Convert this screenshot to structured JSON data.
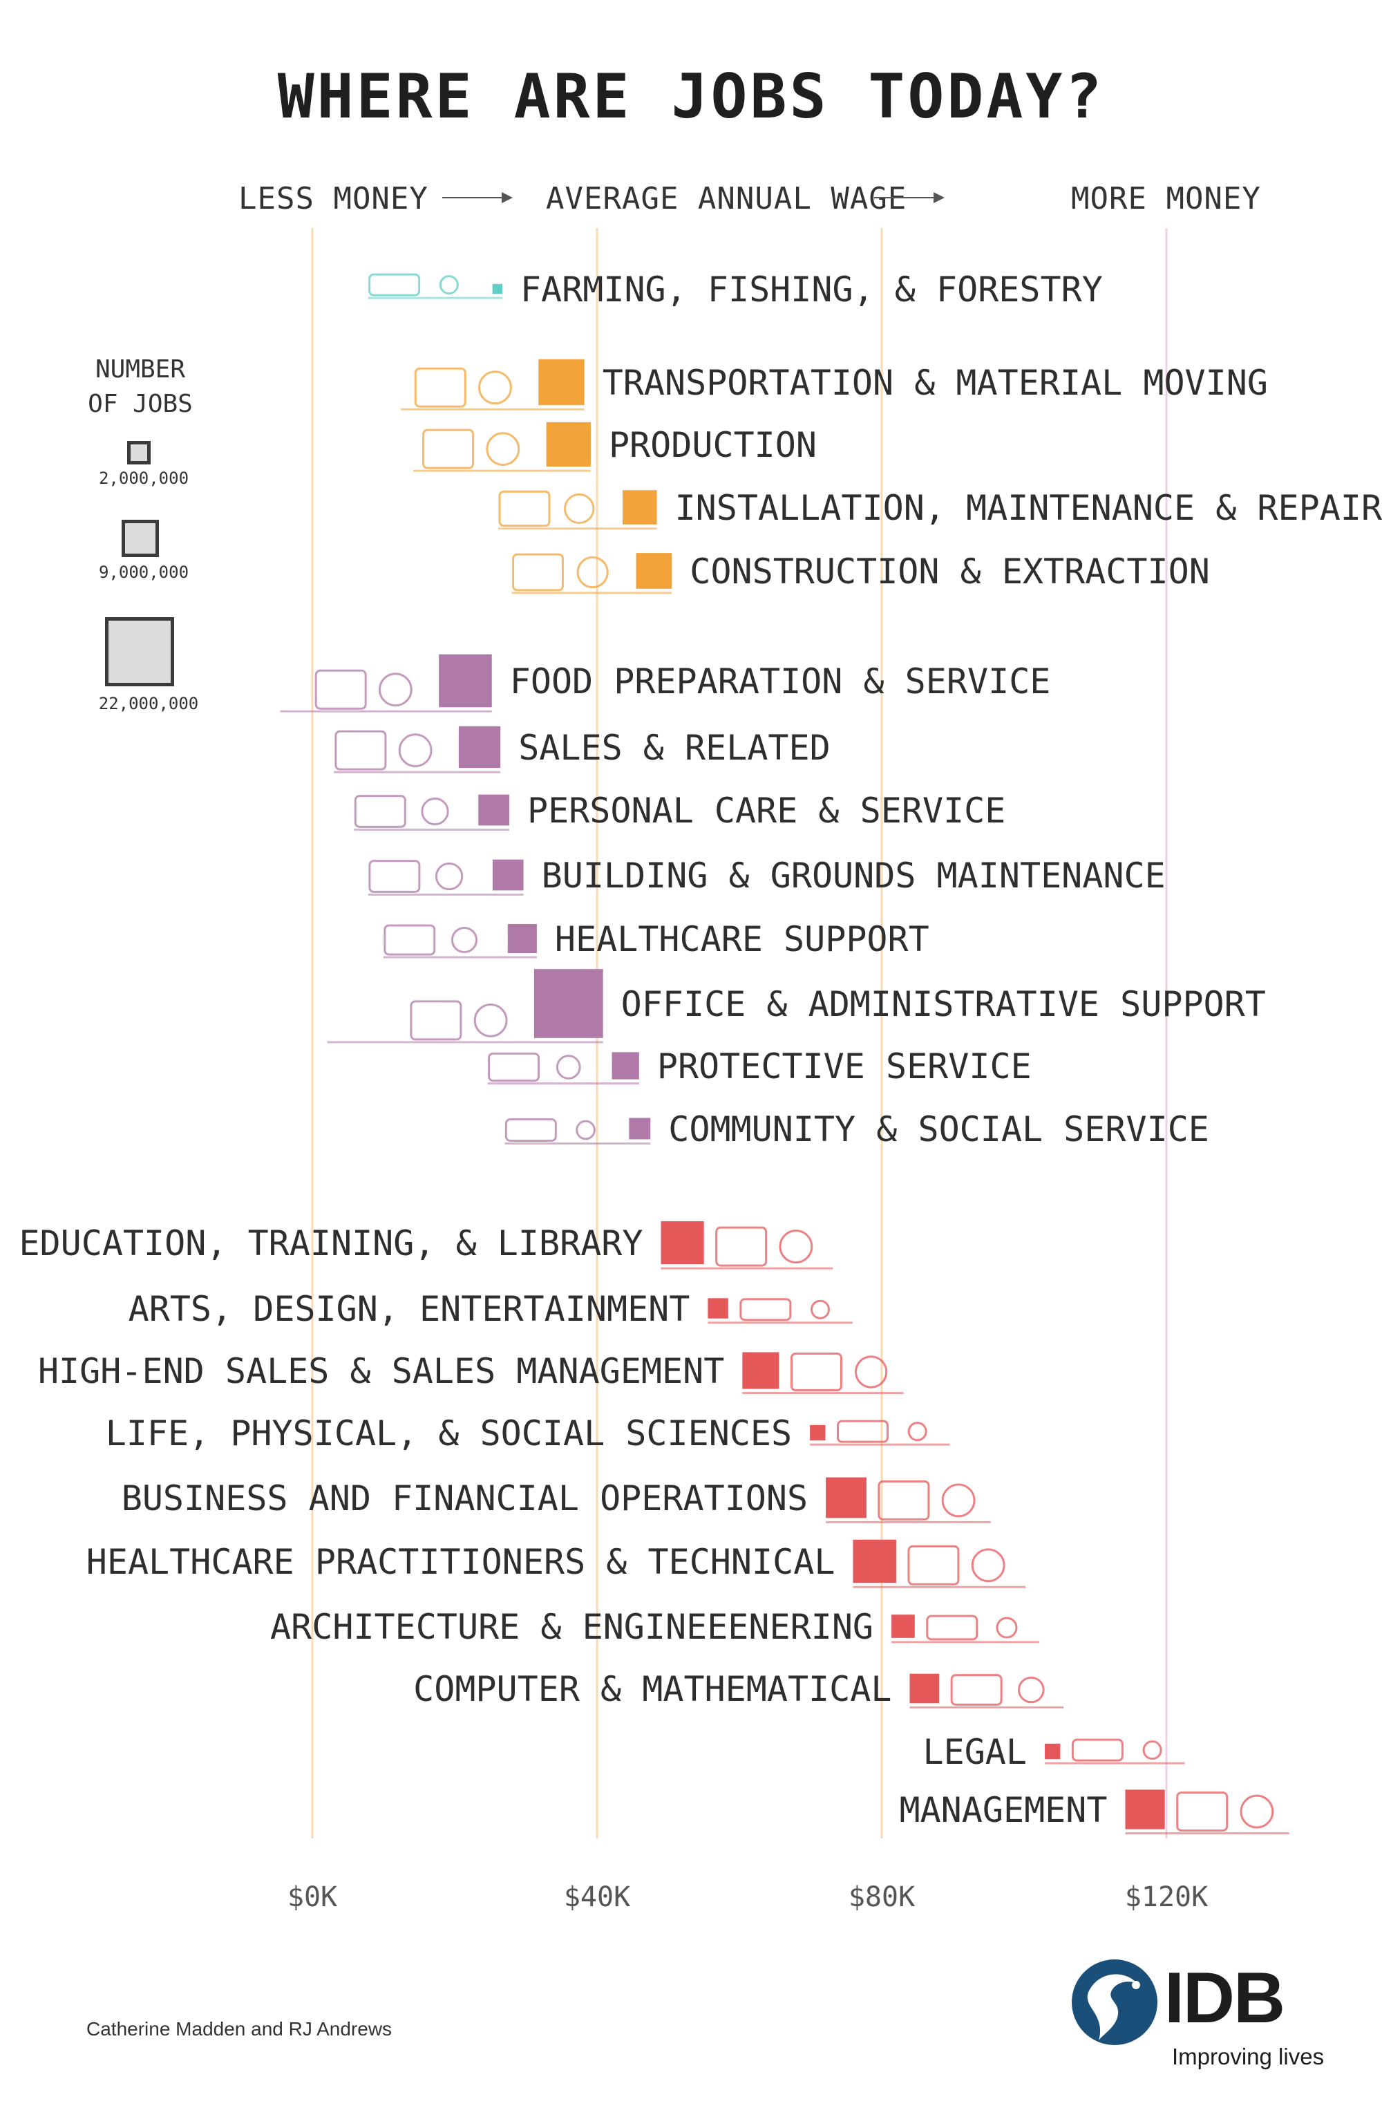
{
  "title": "WHERE ARE JOBS TODAY?",
  "header": {
    "left": "LESS MONEY",
    "center": "AVERAGE ANNUAL WAGE",
    "right": "MORE MONEY"
  },
  "legend": {
    "title_line1": "NUMBER",
    "title_line2": "OF JOBS",
    "items": [
      {
        "value": 2000000,
        "label": "2,000,000"
      },
      {
        "value": 9000000,
        "label": "9,000,000"
      },
      {
        "value": 22000000,
        "label": "22,000,000"
      }
    ]
  },
  "chart_data": {
    "type": "scatter",
    "title": "WHERE ARE JOBS TODAY?",
    "xlabel": "AVERAGE ANNUAL WAGE",
    "size_label": "NUMBER OF JOBS",
    "xlim": [
      0,
      120000
    ],
    "xticks": [
      {
        "value": 0,
        "label": "$0K"
      },
      {
        "value": 40000,
        "label": "$40K"
      },
      {
        "value": 80000,
        "label": "$80K"
      },
      {
        "value": 120000,
        "label": "$120K"
      }
    ],
    "groups": [
      {
        "color": "#5fcfc6",
        "items": [
          {
            "name": "FARMING, FISHING, & FORESTRY",
            "wage": 26000,
            "jobs": 450000
          }
        ]
      },
      {
        "color": "#f2a43a",
        "items": [
          {
            "name": "TRANSPORTATION & MATERIAL MOVING",
            "wage": 35000,
            "jobs": 9700000
          },
          {
            "name": "PRODUCTION",
            "wage": 36000,
            "jobs": 9100000
          },
          {
            "name": "INSTALLATION, MAINTENANCE & REPAIR",
            "wage": 46000,
            "jobs": 5400000
          },
          {
            "name": "CONSTRUCTION & EXTRACTION",
            "wage": 48000,
            "jobs": 5900000
          }
        ]
      },
      {
        "color": "#b07aa8",
        "items": [
          {
            "name": "FOOD PREPARATION & SERVICE",
            "wage": 21500,
            "jobs": 12900000
          },
          {
            "name": "SALES & RELATED",
            "wage": 23500,
            "jobs": 8000000
          },
          {
            "name": "PERSONAL CARE & SERVICE",
            "wage": 25500,
            "jobs": 4400000
          },
          {
            "name": "BUILDING & GROUNDS MAINTENANCE",
            "wage": 27500,
            "jobs": 4400000
          },
          {
            "name": "HEALTHCARE SUPPORT",
            "wage": 29500,
            "jobs": 3900000
          },
          {
            "name": "OFFICE & ADMINISTRATIVE SUPPORT",
            "wage": 36000,
            "jobs": 21900000
          },
          {
            "name": "PROTECTIVE SERVICE",
            "wage": 44000,
            "jobs": 3400000
          },
          {
            "name": "COMMUNITY & SOCIAL SERVICE",
            "wage": 46000,
            "jobs": 2100000
          }
        ]
      },
      {
        "color": "#e5585a",
        "items": [
          {
            "name": "EDUCATION, TRAINING, & LIBRARY",
            "wage": 52000,
            "jobs": 8500000
          },
          {
            "name": "ARTS, DESIGN, ENTERTAINMENT",
            "wage": 57000,
            "jobs": 1900000
          },
          {
            "name": "HIGH-END SALES & SALES MANAGEMENT",
            "wage": 63000,
            "jobs": 6200000
          },
          {
            "name": "LIFE, PHYSICAL, & SOCIAL SCIENCES",
            "wage": 71000,
            "jobs": 1100000
          },
          {
            "name": "BUSINESS AND FINANCIAL OPERATIONS",
            "wage": 75000,
            "jobs": 7600000
          },
          {
            "name": "HEALTHCARE PRACTITIONERS & TECHNICAL",
            "wage": 79000,
            "jobs": 8600000
          },
          {
            "name": "ARCHITECTURE & ENGINEEENERING",
            "wage": 83000,
            "jobs": 2500000
          },
          {
            "name": "COMPUTER & MATHEMATICAL",
            "wage": 86000,
            "jobs": 4000000
          },
          {
            "name": "LEGAL",
            "wage": 104000,
            "jobs": 1100000
          },
          {
            "name": "MANAGEMENT",
            "wage": 117000,
            "jobs": 7200000
          }
        ]
      }
    ]
  },
  "credit": "Catherine Madden and RJ Andrews",
  "logo": {
    "text": "IDB",
    "tagline": "Improving lives"
  }
}
